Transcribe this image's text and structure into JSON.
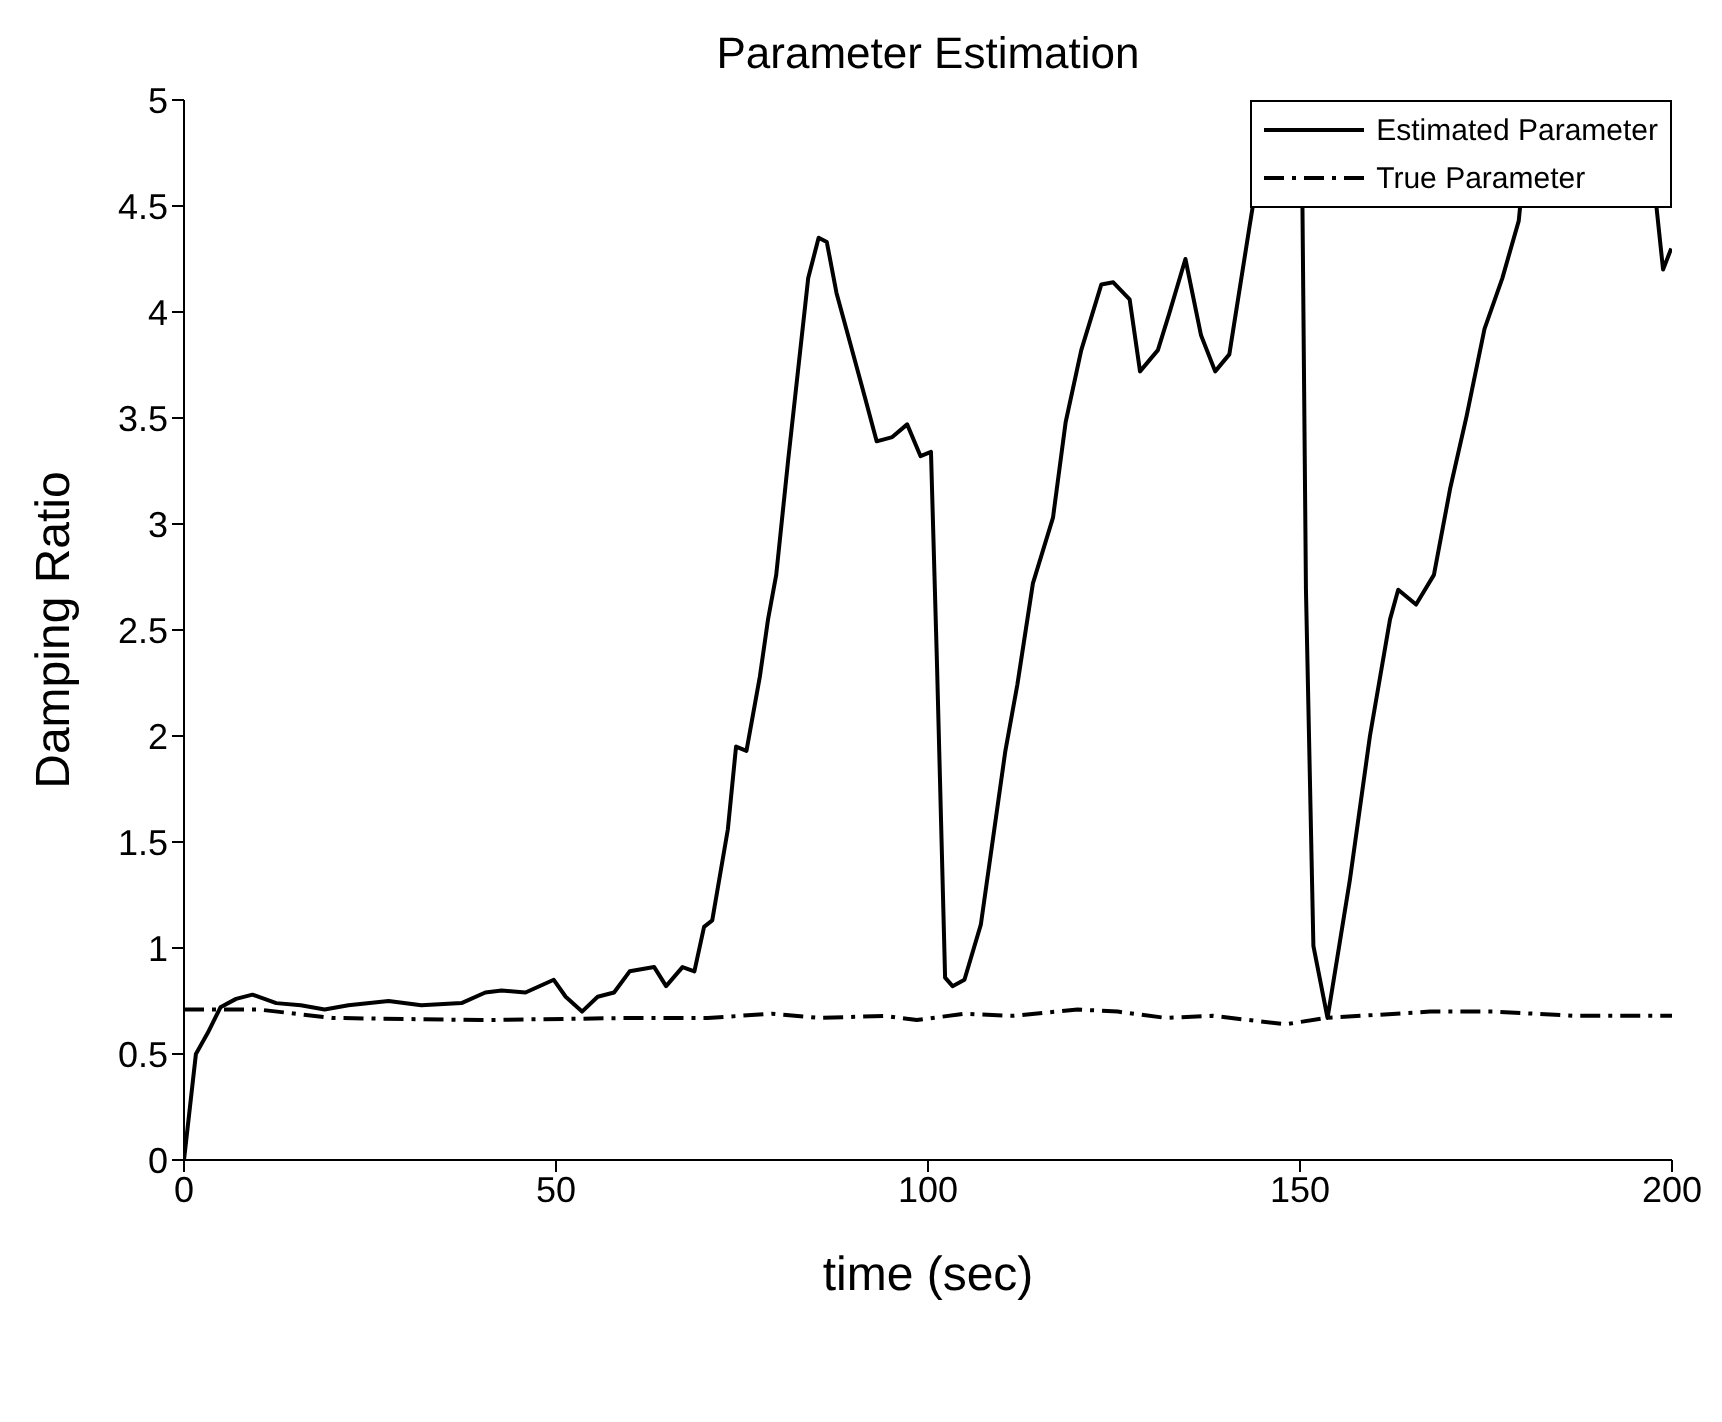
{
  "chart_data": {
    "type": "line",
    "title": "Parameter Estimation",
    "xlabel": "time (sec)",
    "ylabel": "Damping Ratio",
    "xlim": [
      0,
      200
    ],
    "xticks": [
      0,
      50,
      100,
      150,
      200
    ],
    "ylim": [
      0,
      5
    ],
    "yticks": [
      0,
      0.5,
      1,
      1.5,
      2,
      2.5,
      3,
      3.5,
      4,
      4.5,
      5
    ],
    "grid": false,
    "legend": "top right",
    "marker": "none",
    "series": [
      {
        "name": "Estimated Parameter",
        "color": "#000000",
        "line_style": "solid",
        "x": [
          0,
          1.6,
          3.2,
          4.9,
          7,
          9.2,
          12.4,
          15.7,
          18.9,
          22.1,
          27.5,
          31.9,
          37.3,
          40.5,
          42.7,
          45.9,
          49.7,
          51.3,
          53.5,
          55.6,
          57.8,
          59.9,
          63.2,
          64.8,
          67,
          68.6,
          69.9,
          71,
          73.1,
          74.2,
          75.6,
          77.4,
          78.5,
          79.6,
          81.2,
          83.9,
          85.3,
          86.4,
          87.7,
          89.8,
          91.5,
          93.1,
          95.2,
          97.2,
          99,
          100.4,
          101.2,
          102.3,
          103.3,
          104.9,
          107.1,
          110.4,
          112,
          114.1,
          116.8,
          118.5,
          120.6,
          123.3,
          124.9,
          127.1,
          128.5,
          130.9,
          132.4,
          134.6,
          136.7,
          138.6,
          140.5,
          143.2,
          144.3,
          145.4,
          148,
          150.2,
          150.8,
          151.8,
          153.7,
          156.7,
          159.4,
          162.1,
          163.2,
          165.6,
          168,
          170.2,
          172.4,
          174.8,
          177.2,
          179.4,
          181,
          188,
          196.4,
          198.8,
          199.9
        ],
        "values": [
          0,
          0.5,
          0.6,
          0.72,
          0.76,
          0.78,
          0.74,
          0.73,
          0.71,
          0.73,
          0.75,
          0.73,
          0.74,
          0.79,
          0.8,
          0.79,
          0.85,
          0.77,
          0.7,
          0.77,
          0.79,
          0.89,
          0.91,
          0.82,
          0.91,
          0.89,
          1.1,
          1.13,
          1.56,
          1.95,
          1.93,
          2.28,
          2.55,
          2.76,
          3.3,
          4.16,
          4.35,
          4.33,
          4.09,
          3.82,
          3.6,
          3.39,
          3.41,
          3.47,
          3.32,
          3.34,
          2.35,
          0.86,
          0.82,
          0.85,
          1.11,
          1.93,
          2.24,
          2.72,
          3.03,
          3.48,
          3.82,
          4.13,
          4.14,
          4.06,
          3.72,
          3.82,
          3.99,
          4.25,
          3.89,
          3.72,
          3.8,
          4.4,
          4.64,
          5,
          null,
          5,
          2.69,
          1.01,
          0.67,
          1.32,
          2.0,
          2.55,
          2.69,
          2.62,
          2.76,
          3.17,
          3.51,
          3.92,
          4.16,
          4.43,
          5,
          null,
          5,
          4.2,
          4.3
        ]
      },
      {
        "name": "True Parameter",
        "color": "#000000",
        "line_style": "dashed",
        "x": [
          0,
          10,
          20,
          40,
          60,
          70.4,
          79,
          85.5,
          94.2,
          98.5,
          104.9,
          111.4,
          120.1,
          125.5,
          132,
          138.3,
          148,
          153.5,
          167.5,
          176,
          187,
          200
        ],
        "values": [
          0.71,
          0.71,
          0.67,
          0.66,
          0.67,
          0.67,
          0.69,
          0.67,
          0.68,
          0.66,
          0.69,
          0.68,
          0.71,
          0.7,
          0.67,
          0.68,
          0.64,
          0.67,
          0.7,
          0.7,
          0.68,
          0.68
        ]
      }
    ]
  }
}
